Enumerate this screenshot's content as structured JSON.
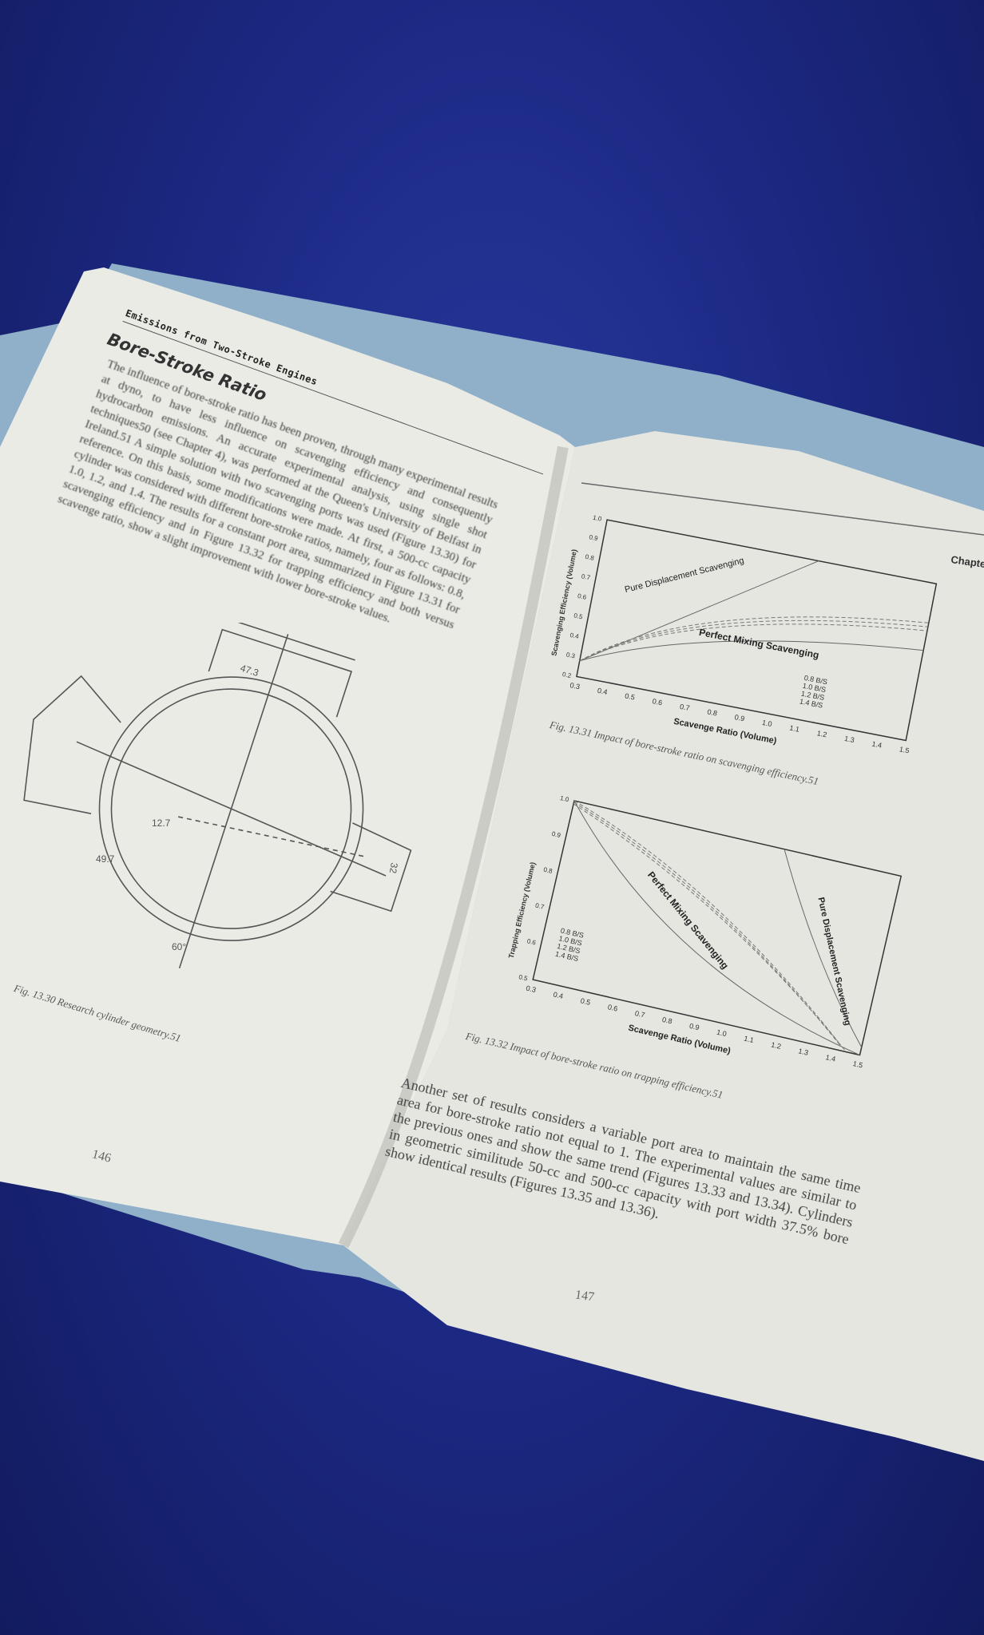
{
  "left_page": {
    "running_head": "Emissions from Two-Stroke Engines",
    "section_title": "Bore-Stroke Ratio",
    "paragraph": "The influence of bore-stroke ratio has been proven, through many experimental results at dyno, to have less influence on scavenging efficiency and consequently hydrocarbon emissions. An accurate experimental analysis, using single shot techniques50 (see Chapter 4), was performed at the Queen's University of Belfast in Ireland.51 A simple solution with two scavenging ports was used (Figure 13.30) for reference. On this basis, some modifications were made. At first, a 500-cc capacity cylinder was considered with different bore-stroke ratios, namely, four as follows: 0.8, 1.0, 1.2, and 1.4. The results for a constant port area, summarized in Figure 13.31 for scavenging efficiency and in Figure 13.32 for trapping efficiency and both versus scavenge ratio, show a slight improvement with lower bore-stroke values.",
    "figure": {
      "dims": [
        "47.3",
        "12.7",
        "49.7",
        "32",
        "60°"
      ],
      "caption": "Fig. 13.30  Research cylinder geometry.51"
    },
    "page_number": "146"
  },
  "right_page": {
    "running_head_fragment": "Chapte",
    "figure_13_31": {
      "ylabel": "Scavenging Efficiency (Volume)",
      "xlabel": "Scavenge Ratio (Volume)",
      "yticks": [
        "0.2",
        "0.3",
        "0.4",
        "0.5",
        "0.6",
        "0.7",
        "0.8",
        "0.9",
        "1.0"
      ],
      "xticks": [
        "0.3",
        "0.4",
        "0.5",
        "0.6",
        "0.7",
        "0.8",
        "0.9",
        "1.0",
        "1.1",
        "1.2",
        "1.3",
        "1.4",
        "1.5"
      ],
      "annotations": [
        "Pure Displacement Scavenging",
        "Perfect Mixing Scavenging"
      ],
      "legend": [
        "0.8 B/S",
        "1.0 B/S",
        "1.2 B/S",
        "1.4 B/S"
      ],
      "caption": "Fig. 13.31  Impact of bore-stroke ratio on scavenging efficiency.51"
    },
    "figure_13_32": {
      "ylabel": "Trapping Efficiency (Volume)",
      "xlabel": "Scavenge Ratio (Volume)",
      "yticks": [
        "0.5",
        "0.6",
        "0.7",
        "0.8",
        "0.9",
        "1.0"
      ],
      "xticks": [
        "0.3",
        "0.4",
        "0.5",
        "0.6",
        "0.7",
        "0.8",
        "0.9",
        "1.0",
        "1.1",
        "1.2",
        "1.3",
        "1.4",
        "1.5"
      ],
      "annotations": [
        "Perfect Mixing Scavenging",
        "Pure Displacement Scavenging"
      ],
      "legend": [
        "0.8 B/S",
        "1.0 B/S",
        "1.2 B/S",
        "1.4 B/S"
      ],
      "caption": "Fig. 13.32  Impact of bore-stroke ratio on trapping efficiency.51"
    },
    "paragraph": "Another set of results considers a variable port area to maintain the same time area for bore-stroke ratio not equal to 1. The experimental values are similar to the previous ones and show the same trend (Figures 13.33 and 13.34). Cylinders in geometric similitude 50-cc and 500-cc capacity with port width 37.5% bore show identical results (Figures 13.35 and 13.36).",
    "page_number": "147"
  },
  "colors": {
    "carpet": "#1d2a86",
    "paper": "#e9e9e4",
    "cover": "#8fb0c8"
  }
}
